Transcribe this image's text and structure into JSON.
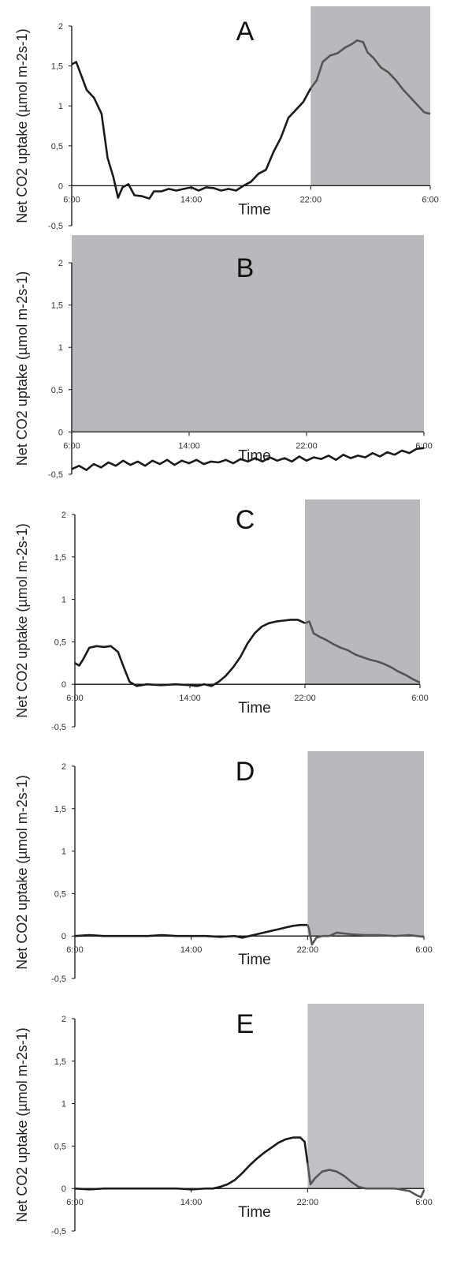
{
  "chart_data": [
    {
      "type": "line",
      "panel": "A",
      "xlabel": "Time",
      "ylabel": "Net CO2 uptake (µmol m-2s-1)",
      "x_ticks": [
        "6:00",
        "14:00",
        "22:00",
        "6:00"
      ],
      "y_ticks": [
        "2",
        "1,5",
        "1",
        "0,5",
        "0",
        "-0,5"
      ],
      "x_range_hours": [
        6,
        30
      ],
      "ylim": [
        -0.5,
        2
      ],
      "dark_period": [
        22,
        30
      ],
      "shade_color": "#b9b9bd",
      "line_color_light": "#1a1a1a",
      "line_color_dark": "#555555",
      "series": [
        {
          "x": [
            6,
            6.3,
            6.6,
            7,
            7.5,
            8,
            8.4,
            8.8,
            9.1,
            9.4,
            9.8,
            10.2,
            10.7,
            11.2,
            11.5,
            12,
            12.5,
            13,
            13.5,
            14,
            14.5,
            15,
            15.5,
            16,
            16.5,
            17,
            17.5,
            18,
            18.5,
            19,
            19.5,
            20,
            20.5,
            21,
            21.5,
            22,
            22.4,
            22.8,
            23.3,
            23.8,
            24.3,
            24.8,
            25.1,
            25.5,
            25.8,
            26.2,
            26.7,
            27.2,
            27.7,
            28.2,
            28.7,
            29.2,
            29.6,
            30
          ],
          "y": [
            1.52,
            1.55,
            1.4,
            1.2,
            1.1,
            0.9,
            0.35,
            0.1,
            -0.15,
            -0.02,
            0.02,
            -0.12,
            -0.13,
            -0.16,
            -0.07,
            -0.07,
            -0.04,
            -0.06,
            -0.04,
            -0.02,
            -0.06,
            -0.02,
            -0.03,
            -0.06,
            -0.04,
            -0.06,
            0.0,
            0.05,
            0.15,
            0.2,
            0.42,
            0.6,
            0.85,
            0.95,
            1.05,
            1.22,
            1.32,
            1.55,
            1.63,
            1.66,
            1.73,
            1.78,
            1.82,
            1.8,
            1.67,
            1.6,
            1.48,
            1.42,
            1.32,
            1.2,
            1.1,
            1.0,
            0.92,
            0.9
          ]
        }
      ]
    },
    {
      "type": "line",
      "panel": "B",
      "xlabel": "Time",
      "ylabel": "Net CO2 uptake (µmol m-2s-1)",
      "x_ticks": [
        "6:00",
        "14:00",
        "22:00",
        "6:00"
      ],
      "y_ticks": [
        "2",
        "1,5",
        "1",
        "0,5",
        "0",
        "-0,5"
      ],
      "x_range_hours": [
        6,
        30
      ],
      "ylim": [
        -0.5,
        2
      ],
      "dark_period": [
        6,
        30
      ],
      "shade_color": "#b9b9bd",
      "line_color_light": "#1a1a1a",
      "line_color_dark": "#1a1a1a",
      "series": [
        {
          "x": [
            6,
            6.5,
            7,
            7.5,
            8,
            8.5,
            9,
            9.5,
            10,
            10.5,
            11,
            11.5,
            12,
            12.5,
            13,
            13.5,
            14,
            14.5,
            15,
            15.5,
            16,
            16.5,
            17,
            17.5,
            18,
            18.5,
            19,
            19.5,
            20,
            20.5,
            21,
            21.5,
            22,
            22.5,
            23,
            23.5,
            24,
            24.5,
            25,
            25.5,
            26,
            26.5,
            27,
            27.5,
            28,
            28.5,
            29,
            29.5,
            30
          ],
          "y": [
            -0.44,
            -0.4,
            -0.45,
            -0.38,
            -0.42,
            -0.36,
            -0.4,
            -0.34,
            -0.39,
            -0.35,
            -0.4,
            -0.34,
            -0.38,
            -0.33,
            -0.39,
            -0.34,
            -0.37,
            -0.33,
            -0.38,
            -0.35,
            -0.36,
            -0.33,
            -0.37,
            -0.32,
            -0.35,
            -0.31,
            -0.35,
            -0.3,
            -0.34,
            -0.31,
            -0.35,
            -0.29,
            -0.34,
            -0.3,
            -0.32,
            -0.28,
            -0.33,
            -0.27,
            -0.31,
            -0.28,
            -0.3,
            -0.25,
            -0.29,
            -0.24,
            -0.27,
            -0.22,
            -0.25,
            -0.2,
            -0.19
          ]
        }
      ]
    },
    {
      "type": "line",
      "panel": "C",
      "xlabel": "Time",
      "ylabel": "Net CO2 uptake (µmol m-2s-1)",
      "x_ticks": [
        "6:00",
        "14:00",
        "22:00",
        "6:00"
      ],
      "y_ticks": [
        "2",
        "1,5",
        "1",
        "0,5",
        "0",
        "-0,5"
      ],
      "x_range_hours": [
        6,
        30
      ],
      "ylim": [
        -0.5,
        2
      ],
      "dark_period": [
        22,
        30
      ],
      "shade_color": "#b9b9bd",
      "line_color_light": "#1a1a1a",
      "line_color_dark": "#555555",
      "series": [
        {
          "x": [
            6,
            6.3,
            6.6,
            7,
            7.5,
            8,
            8.5,
            9,
            9.4,
            9.8,
            10.3,
            11,
            12,
            13,
            14,
            14.5,
            15,
            15.5,
            16,
            16.5,
            17,
            17.5,
            18,
            18.5,
            19,
            19.5,
            20,
            20.5,
            21,
            21.5,
            22,
            22.3,
            22.6,
            23,
            23.5,
            24,
            24.5,
            25,
            25.5,
            26,
            26.5,
            27,
            27.5,
            28,
            28.5,
            29,
            29.5,
            30
          ],
          "y": [
            0.25,
            0.22,
            0.3,
            0.43,
            0.45,
            0.44,
            0.45,
            0.38,
            0.2,
            0.03,
            -0.02,
            0.0,
            -0.01,
            0.0,
            -0.01,
            -0.02,
            0.0,
            -0.02,
            0.03,
            0.1,
            0.2,
            0.32,
            0.48,
            0.6,
            0.68,
            0.72,
            0.74,
            0.75,
            0.76,
            0.76,
            0.72,
            0.74,
            0.6,
            0.56,
            0.52,
            0.47,
            0.43,
            0.4,
            0.35,
            0.32,
            0.29,
            0.27,
            0.24,
            0.2,
            0.15,
            0.11,
            0.06,
            0.02
          ]
        }
      ]
    },
    {
      "type": "line",
      "panel": "D",
      "xlabel": "Time",
      "ylabel": "Net CO2 uptake (µmol m-2s-1)",
      "x_ticks": [
        "6:00",
        "14:00",
        "22:00",
        "6:00"
      ],
      "y_ticks": [
        "2",
        "1,5",
        "1",
        "0,5",
        "0",
        "-0,5"
      ],
      "x_range_hours": [
        6,
        30
      ],
      "ylim": [
        -0.5,
        2
      ],
      "dark_period": [
        22,
        30
      ],
      "shade_color": "#b9b9bd",
      "line_color_light": "#1a1a1a",
      "line_color_dark": "#555555",
      "series": [
        {
          "x": [
            6,
            7,
            8,
            9,
            10,
            11,
            12,
            13,
            14,
            15,
            16,
            17,
            17.5,
            18,
            18.5,
            19,
            19.5,
            20,
            20.5,
            21,
            21.5,
            22,
            22.1,
            22.3,
            22.6,
            23,
            23.5,
            24,
            24.5,
            25,
            26,
            27,
            28,
            29,
            30
          ],
          "y": [
            0.0,
            0.01,
            0.0,
            0.0,
            0.0,
            0.0,
            0.01,
            0.0,
            0.0,
            0.0,
            -0.01,
            0.0,
            -0.02,
            0.0,
            0.02,
            0.04,
            0.06,
            0.08,
            0.1,
            0.12,
            0.13,
            0.13,
            0.08,
            -0.1,
            -0.02,
            0.0,
            0.0,
            0.04,
            0.03,
            0.02,
            0.01,
            0.01,
            0.0,
            0.01,
            -0.01
          ]
        }
      ]
    },
    {
      "type": "line",
      "panel": "E",
      "xlabel": "Time",
      "ylabel": "Net CO2 uptake (µmol m-2s-1)",
      "x_ticks": [
        "6:00",
        "14:00",
        "22:00",
        "6:00"
      ],
      "y_ticks": [
        "2",
        "1,5",
        "1",
        "0,5",
        "0",
        "-0,5"
      ],
      "x_range_hours": [
        6,
        30
      ],
      "ylim": [
        -0.5,
        2
      ],
      "dark_period": [
        22,
        30
      ],
      "shade_color": "#c1c1c5",
      "line_color_light": "#1a1a1a",
      "line_color_dark": "#555555",
      "series": [
        {
          "x": [
            6,
            7,
            8,
            9,
            10,
            11,
            12,
            13,
            14,
            15,
            15.5,
            16,
            16.5,
            17,
            17.5,
            18,
            18.5,
            19,
            19.5,
            20,
            20.5,
            21,
            21.5,
            21.8,
            22,
            22.2,
            22.5,
            23,
            23.5,
            24,
            24.5,
            25,
            25.5,
            26,
            26.5,
            27,
            28,
            29,
            29.5,
            29.8,
            30
          ],
          "y": [
            0.0,
            -0.01,
            0.0,
            0.0,
            0.0,
            0.0,
            0.0,
            0.0,
            -0.01,
            0.0,
            0.0,
            0.02,
            0.05,
            0.1,
            0.18,
            0.27,
            0.35,
            0.42,
            0.48,
            0.54,
            0.58,
            0.6,
            0.6,
            0.55,
            0.3,
            0.05,
            0.12,
            0.2,
            0.22,
            0.2,
            0.15,
            0.08,
            0.02,
            0.0,
            0.0,
            0.0,
            0.0,
            -0.03,
            -0.08,
            -0.1,
            -0.02
          ]
        }
      ]
    }
  ]
}
